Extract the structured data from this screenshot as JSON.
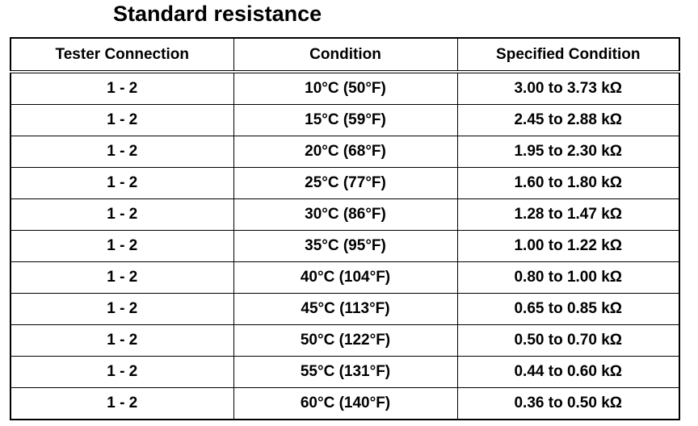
{
  "header": {
    "title": "Standard resistance"
  },
  "table": {
    "columns": [
      "Tester Connection",
      "Condition",
      "Specified Condition"
    ],
    "rows": [
      [
        "1 - 2",
        "10°C (50°F)",
        "3.00 to 3.73 kΩ"
      ],
      [
        "1 - 2",
        "15°C (59°F)",
        "2.45 to 2.88 kΩ"
      ],
      [
        "1 - 2",
        "20°C (68°F)",
        "1.95 to 2.30 kΩ"
      ],
      [
        "1 - 2",
        "25°C (77°F)",
        "1.60 to 1.80 kΩ"
      ],
      [
        "1 - 2",
        "30°C (86°F)",
        "1.28 to 1.47 kΩ"
      ],
      [
        "1 - 2",
        "35°C (95°F)",
        "1.00 to 1.22 kΩ"
      ],
      [
        "1 - 2",
        "40°C (104°F)",
        "0.80 to 1.00 kΩ"
      ],
      [
        "1 - 2",
        "45°C (113°F)",
        "0.65 to 0.85 kΩ"
      ],
      [
        "1 - 2",
        "50°C (122°F)",
        "0.50 to 0.70 kΩ"
      ],
      [
        "1 - 2",
        "55°C (131°F)",
        "0.44 to 0.60 kΩ"
      ],
      [
        "1 - 2",
        "60°C (140°F)",
        "0.36 to 0.50 kΩ"
      ]
    ]
  }
}
